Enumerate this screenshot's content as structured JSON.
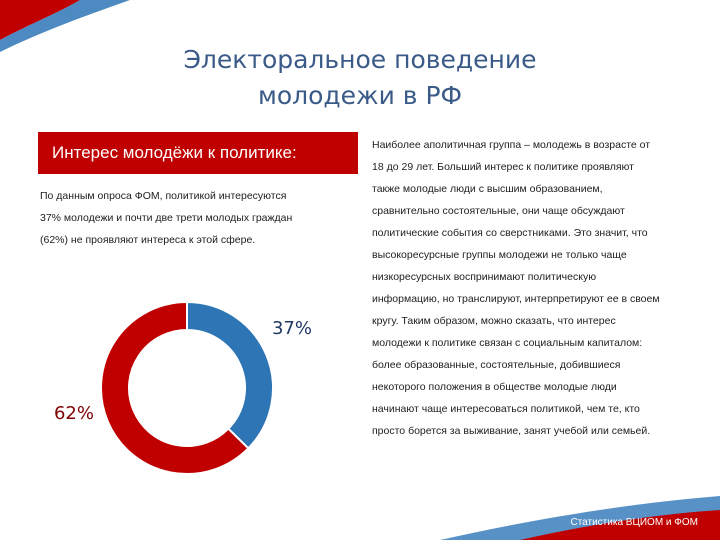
{
  "title_lines": [
    "Электоральное поведение",
    "молодежи в РФ"
  ],
  "interest_banner": "Интерес молодёжи к  политике:",
  "left_paragraph_lines": [
    "По данным опроса ФОМ, политикой интересуются",
    "37% молодежи и почти две трети молодых граждан",
    "(62%) не проявляют интереса к этой сфере."
  ],
  "right_paragraph_lines": [
    "Наиболее аполитичная группа – молодежь в возрасте от",
    "18 до 29 лет. Больший интерес к политике проявляют",
    "также молодые люди с высшим образованием,",
    "сравнительно состоятельные, они чаще обсуждают",
    "политические события со сверстниками. Это значит, что",
    "высокоресурсные группы молодежи не только чаще",
    "низкоресурсных воспринимают политическую",
    "информацию, но транслируют, интерпретируют ее в своем",
    "кругу. Таким образом, можно сказать, что интерес",
    "молодежи к политике связан с социальным капиталом:",
    "более образованные, состоятельные, добившиеся",
    "некоторого положения в обществе молодые люди",
    "начинают чаще интересоваться политикой, чем те, кто",
    "просто борется за выживание, занят учебой или семьей."
  ],
  "source": "Статистика ВЦИОМ и ФОМ",
  "colors": {
    "blue": "#2e75b6",
    "red": "#c00000",
    "title": "#3a5a88"
  },
  "chart_data": {
    "type": "pie",
    "style": "donut",
    "slices": [
      {
        "value": 37,
        "label": "37%",
        "color": "#2e75b6"
      },
      {
        "value": 62,
        "label": "62%",
        "color": "#c00000"
      }
    ]
  }
}
